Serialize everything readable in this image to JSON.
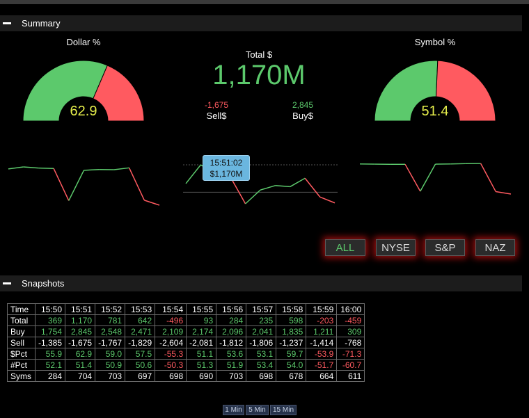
{
  "summary": {
    "title": "Summary",
    "dollar_gauge": {
      "label": "Dollar %",
      "value": "62.9",
      "percent": 62.9
    },
    "symbol_gauge": {
      "label": "Symbol %",
      "value": "51.4",
      "percent": 51.4
    },
    "total": {
      "label": "Total $",
      "value": "1,170M"
    },
    "sell": {
      "value": "-1,675",
      "label": "Sell$"
    },
    "buy": {
      "value": "2,845",
      "label": "Buy$"
    },
    "tooltip": {
      "time": "15:51:02",
      "value": "$1,170M"
    },
    "markets": [
      "ALL",
      "NYSE",
      "S&P",
      "NAZ"
    ],
    "active_market": "ALL"
  },
  "snapshots": {
    "title": "Snapshots",
    "rows": [
      {
        "label": "Time",
        "cells": [
          "15:50",
          "15:51",
          "15:52",
          "15:53",
          "15:54",
          "15:55",
          "15:56",
          "15:57",
          "15:58",
          "15:59",
          "16:00"
        ],
        "colors": [
          "w",
          "w",
          "w",
          "w",
          "w",
          "w",
          "w",
          "w",
          "w",
          "w",
          "w"
        ]
      },
      {
        "label": "Total",
        "cells": [
          "369",
          "1,170",
          "781",
          "642",
          "-496",
          "93",
          "284",
          "235",
          "598",
          "-203",
          "-459"
        ],
        "colors": [
          "p",
          "p",
          "p",
          "p",
          "n",
          "p",
          "p",
          "p",
          "p",
          "n",
          "n"
        ]
      },
      {
        "label": "Buy",
        "cells": [
          "1,754",
          "2,845",
          "2,548",
          "2,471",
          "2,109",
          "2,174",
          "2,096",
          "2,041",
          "1,835",
          "1,211",
          "309"
        ],
        "colors": [
          "p",
          "p",
          "p",
          "p",
          "p",
          "p",
          "p",
          "p",
          "p",
          "p",
          "p"
        ]
      },
      {
        "label": "Sell",
        "cells": [
          "-1,385",
          "-1,675",
          "-1,767",
          "-1,829",
          "-2,604",
          "-2,081",
          "-1,812",
          "-1,806",
          "-1,237",
          "-1,414",
          "-768"
        ],
        "colors": [
          "w",
          "w",
          "w",
          "w",
          "w",
          "w",
          "w",
          "w",
          "w",
          "w",
          "w"
        ]
      },
      {
        "label": "$Pct",
        "cells": [
          "55.9",
          "62.9",
          "59.0",
          "57.5",
          "-55.3",
          "51.1",
          "53.6",
          "53.1",
          "59.7",
          "-53.9",
          "-71.3"
        ],
        "colors": [
          "p",
          "p",
          "p",
          "p",
          "n",
          "p",
          "p",
          "p",
          "p",
          "n",
          "n"
        ]
      },
      {
        "label": "#Pct",
        "cells": [
          "52.1",
          "51.4",
          "50.9",
          "50.6",
          "-50.3",
          "51.3",
          "51.9",
          "53.4",
          "54.0",
          "-51.7",
          "-60.7"
        ],
        "colors": [
          "p",
          "p",
          "p",
          "p",
          "n",
          "p",
          "p",
          "p",
          "p",
          "n",
          "n"
        ]
      },
      {
        "label": "Syms",
        "cells": [
          "284",
          "704",
          "703",
          "697",
          "698",
          "690",
          "703",
          "698",
          "678",
          "664",
          "611"
        ],
        "colors": [
          "w",
          "w",
          "w",
          "w",
          "w",
          "w",
          "w",
          "w",
          "w",
          "w",
          "w"
        ]
      }
    ],
    "intervals": [
      "1 Min",
      "5 Min",
      "15 Min"
    ]
  },
  "colors": {
    "up": "#5cc96c",
    "down": "#ff5a60",
    "accent": "#e6ee4b"
  },
  "sparklines": {
    "dollar_pct": [
      55.9,
      62.9,
      59.0,
      57.5,
      -55.3,
      51.1,
      53.6,
      53.1,
      59.7,
      -53.9,
      -71.3
    ],
    "total": [
      369,
      1170,
      781,
      642,
      -496,
      93,
      284,
      235,
      598,
      -203,
      -459
    ],
    "symbol_pct": [
      52.1,
      51.4,
      50.9,
      50.6,
      -50.3,
      51.3,
      51.9,
      53.4,
      54.0,
      -51.7,
      -60.7
    ]
  }
}
